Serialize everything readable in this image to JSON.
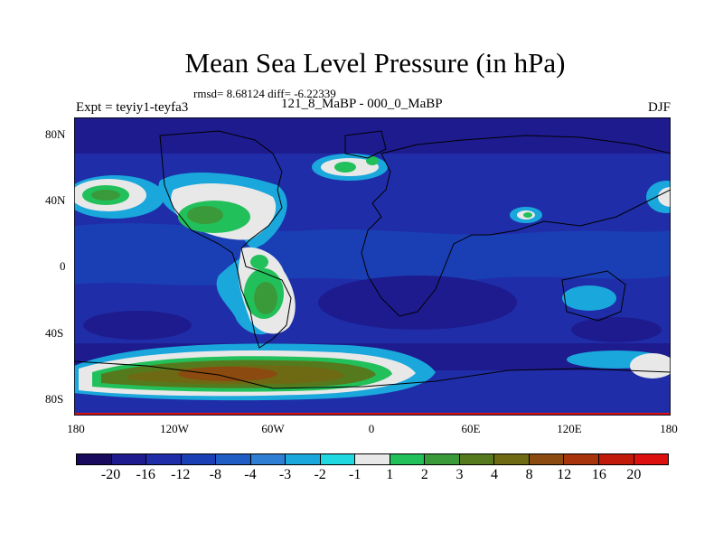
{
  "title": "Mean Sea Level Pressure (in hPa)",
  "stats": "rmsd= 8.68124 diff= -6.22339",
  "experiment": "Expt = teyiy1-teyfa3",
  "period": "121_8_MaBP - 000_0_MaBP",
  "season": "DJF",
  "lat_labels": [
    "80N",
    "40N",
    "0",
    "40S",
    "80S"
  ],
  "lon_labels": [
    "180",
    "120W",
    "60W",
    "0",
    "60E",
    "120E",
    "180"
  ],
  "colorbar": {
    "labels": [
      "-20",
      "-16",
      "-12",
      "-8",
      "-4",
      "-3",
      "-2",
      "-1",
      "1",
      "2",
      "3",
      "4",
      "8",
      "12",
      "16",
      "20"
    ],
    "colors": [
      "#1a0a5e",
      "#1e1b8e",
      "#1f2ea8",
      "#1a3fb5",
      "#1f5cc4",
      "#2e7fd4",
      "#1aa7dc",
      "#20d8e0",
      "#e8e8e8",
      "#22c05a",
      "#3a9a3a",
      "#557a1e",
      "#6e6a14",
      "#8a4a10",
      "#a8340c",
      "#c21a0a",
      "#dd1010"
    ]
  }
}
